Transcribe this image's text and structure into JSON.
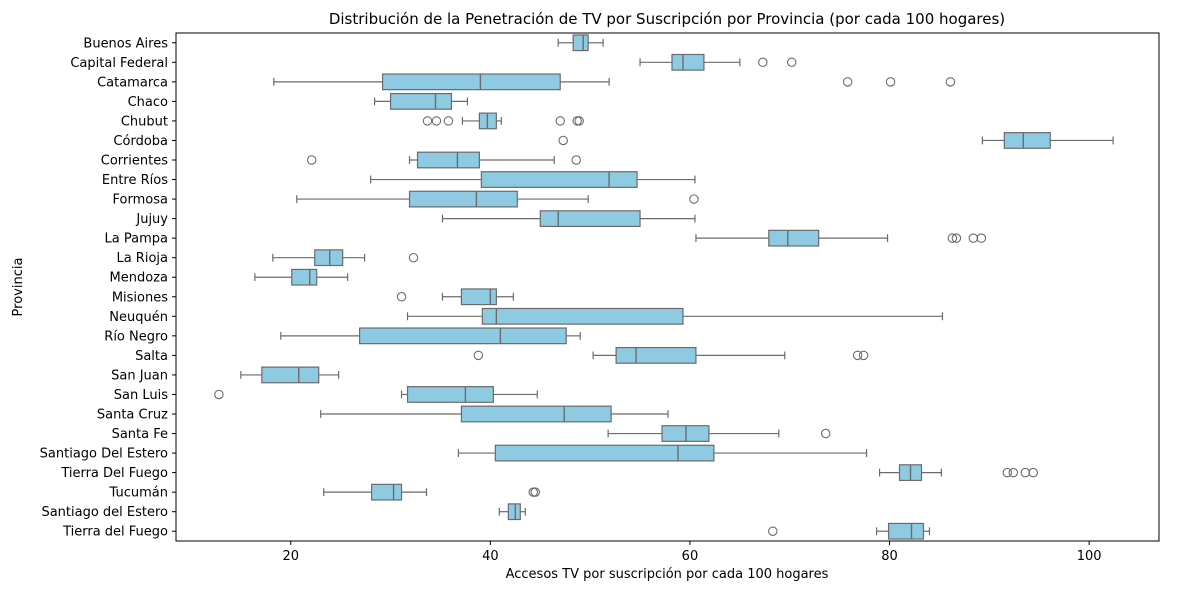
{
  "chart_data": {
    "type": "boxplot",
    "orientation": "horizontal",
    "title": "Distribución de la Penetración de TV por Suscripción por Provincia (por cada 100 hogares)",
    "xlabel": "Accesos TV por suscripción por cada 100 hogares",
    "ylabel": "Provincia",
    "xlim": [
      8.5,
      107
    ],
    "xticks": [
      20,
      40,
      60,
      80,
      100
    ],
    "grid": false,
    "box_color": "#8fcae3",
    "line_color": "#6b6b6b",
    "categories": [
      {
        "name": "Buenos Aires",
        "whisker_low": 46.8,
        "q1": 48.3,
        "median": 49.3,
        "q3": 49.8,
        "whisker_high": 51.3,
        "outliers": []
      },
      {
        "name": "Capital Federal",
        "whisker_low": 55.0,
        "q1": 58.2,
        "median": 59.3,
        "q3": 61.4,
        "whisker_high": 65.0,
        "outliers": [
          67.3,
          70.2
        ]
      },
      {
        "name": "Catamarca",
        "whisker_low": 18.3,
        "q1": 29.2,
        "median": 39.0,
        "q3": 47.0,
        "whisker_high": 51.9,
        "outliers": [
          75.8,
          80.1,
          86.1
        ]
      },
      {
        "name": "Chaco",
        "whisker_low": 28.4,
        "q1": 30.0,
        "median": 34.5,
        "q3": 36.1,
        "whisker_high": 37.7,
        "outliers": []
      },
      {
        "name": "Chubut",
        "whisker_low": 37.2,
        "q1": 38.9,
        "median": 39.7,
        "q3": 40.6,
        "whisker_high": 41.1,
        "outliers": [
          33.7,
          34.6,
          35.8,
          47.0,
          48.7,
          48.9
        ]
      },
      {
        "name": "Córdoba",
        "whisker_low": 89.3,
        "q1": 91.5,
        "median": 93.4,
        "q3": 96.1,
        "whisker_high": 102.4,
        "outliers": [
          47.3
        ]
      },
      {
        "name": "Corrientes",
        "whisker_low": 31.9,
        "q1": 32.7,
        "median": 36.7,
        "q3": 38.9,
        "whisker_high": 46.4,
        "outliers": [
          22.1,
          48.6
        ]
      },
      {
        "name": "Entre Ríos",
        "whisker_low": 28.0,
        "q1": 39.1,
        "median": 51.9,
        "q3": 54.7,
        "whisker_high": 60.5,
        "outliers": []
      },
      {
        "name": "Formosa",
        "whisker_low": 20.6,
        "q1": 31.9,
        "median": 38.6,
        "q3": 42.7,
        "whisker_high": 49.8,
        "outliers": [
          60.4
        ]
      },
      {
        "name": "Jujuy",
        "whisker_low": 35.2,
        "q1": 45.0,
        "median": 46.8,
        "q3": 55.0,
        "whisker_high": 60.5,
        "outliers": []
      },
      {
        "name": "La Pampa",
        "whisker_low": 60.6,
        "q1": 67.9,
        "median": 69.8,
        "q3": 72.9,
        "whisker_high": 79.8,
        "outliers": [
          86.3,
          86.7,
          88.4,
          89.2
        ]
      },
      {
        "name": "La Rioja",
        "whisker_low": 18.2,
        "q1": 22.4,
        "median": 23.9,
        "q3": 25.2,
        "whisker_high": 27.4,
        "outliers": [
          32.3
        ]
      },
      {
        "name": "Mendoza",
        "whisker_low": 16.4,
        "q1": 20.1,
        "median": 21.9,
        "q3": 22.6,
        "whisker_high": 25.7,
        "outliers": []
      },
      {
        "name": "Misiones",
        "whisker_low": 35.2,
        "q1": 37.1,
        "median": 40.0,
        "q3": 40.6,
        "whisker_high": 42.3,
        "outliers": [
          31.1
        ]
      },
      {
        "name": "Neuquén",
        "whisker_low": 31.7,
        "q1": 39.2,
        "median": 40.6,
        "q3": 59.3,
        "whisker_high": 85.3,
        "outliers": []
      },
      {
        "name": "Río Negro",
        "whisker_low": 19.0,
        "q1": 26.9,
        "median": 41.0,
        "q3": 47.6,
        "whisker_high": 49.0,
        "outliers": []
      },
      {
        "name": "Salta",
        "whisker_low": 50.3,
        "q1": 52.6,
        "median": 54.6,
        "q3": 60.6,
        "whisker_high": 69.5,
        "outliers": [
          38.8,
          76.8,
          77.4
        ]
      },
      {
        "name": "San Juan",
        "whisker_low": 15.0,
        "q1": 17.1,
        "median": 20.8,
        "q3": 22.8,
        "whisker_high": 24.8,
        "outliers": []
      },
      {
        "name": "San Luis",
        "whisker_low": 31.1,
        "q1": 31.7,
        "median": 37.5,
        "q3": 40.3,
        "whisker_high": 44.7,
        "outliers": [
          12.8
        ]
      },
      {
        "name": "Santa Cruz",
        "whisker_low": 23.0,
        "q1": 37.1,
        "median": 47.4,
        "q3": 52.1,
        "whisker_high": 57.8,
        "outliers": []
      },
      {
        "name": "Santa Fe",
        "whisker_low": 51.8,
        "q1": 57.2,
        "median": 59.6,
        "q3": 61.9,
        "whisker_high": 68.9,
        "outliers": [
          73.6
        ]
      },
      {
        "name": "Santiago Del Estero",
        "whisker_low": 36.8,
        "q1": 40.5,
        "median": 58.8,
        "q3": 62.4,
        "whisker_high": 77.7,
        "outliers": []
      },
      {
        "name": "Tierra Del Fuego",
        "whisker_low": 79.0,
        "q1": 81.0,
        "median": 82.1,
        "q3": 83.2,
        "whisker_high": 85.2,
        "outliers": [
          91.8,
          92.4,
          93.6,
          94.4
        ]
      },
      {
        "name": "Tucumán",
        "whisker_low": 23.3,
        "q1": 28.1,
        "median": 30.3,
        "q3": 31.1,
        "whisker_high": 33.6,
        "outliers": [
          44.3,
          44.5
        ]
      },
      {
        "name": "Santiago del Estero",
        "whisker_low": 40.9,
        "q1": 41.8,
        "median": 42.5,
        "q3": 43.0,
        "whisker_high": 43.5,
        "outliers": []
      },
      {
        "name": "Tierra del Fuego",
        "whisker_low": 78.7,
        "q1": 79.9,
        "median": 82.2,
        "q3": 83.4,
        "whisker_high": 84.0,
        "outliers": [
          68.3
        ]
      }
    ]
  }
}
